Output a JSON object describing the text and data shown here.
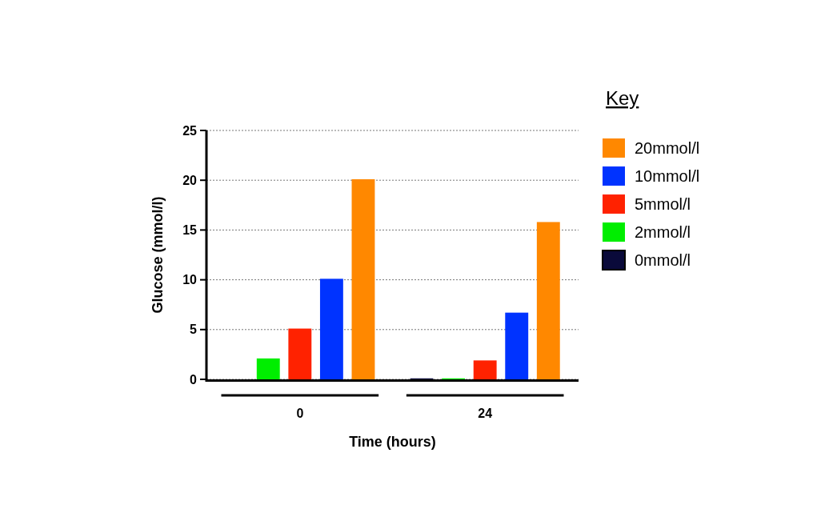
{
  "chart_data": {
    "type": "bar",
    "xlabel": "Time (hours)",
    "ylabel": "Glucose (mmol/l)",
    "legend_title": "Key",
    "categories": [
      "0",
      "24"
    ],
    "series": [
      {
        "name": "0mmol/l",
        "color": "#0a0a3a",
        "values": [
          0,
          0.1
        ]
      },
      {
        "name": "2mmol/l",
        "color": "#00ee00",
        "values": [
          2.1,
          0.1
        ]
      },
      {
        "name": "5mmol/l",
        "color": "#ff2200",
        "values": [
          5.1,
          1.9
        ]
      },
      {
        "name": "10mmol/l",
        "color": "#0033ff",
        "values": [
          10.1,
          6.7
        ]
      },
      {
        "name": "20mmol/l",
        "color": "#ff8800",
        "values": [
          20.1,
          15.8
        ]
      }
    ],
    "ylim": [
      0,
      25
    ],
    "yticks": [
      0,
      5,
      10,
      15,
      20,
      25
    ],
    "grid": "y",
    "legend": "right"
  }
}
